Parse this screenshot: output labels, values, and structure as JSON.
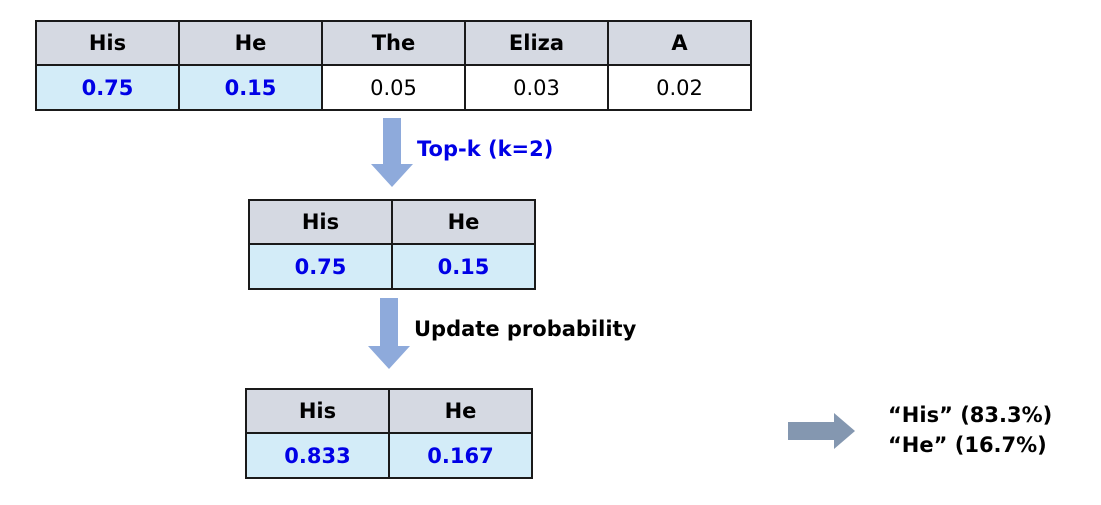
{
  "colors": {
    "header_fill": "#d5d9e2",
    "highlight_fill": "#d3ecf8",
    "highlight_text": "#0000e6",
    "down_arrow": "#8eaadb",
    "right_arrow": "#8497b0",
    "topk_label": "#0000e6"
  },
  "table_all": {
    "headers": [
      "His",
      "He",
      "The",
      "Eliza",
      "A"
    ],
    "values": [
      "0.75",
      "0.15",
      "0.05",
      "0.03",
      "0.02"
    ]
  },
  "step1": {
    "label": "Top-k (k=2)"
  },
  "table_topk": {
    "headers": [
      "His",
      "He"
    ],
    "values": [
      "0.75",
      "0.15"
    ]
  },
  "step2": {
    "label": "Update probability"
  },
  "table_updated": {
    "headers": [
      "His",
      "He"
    ],
    "values": [
      "0.833",
      "0.167"
    ]
  },
  "result": {
    "lines": [
      "“His”  (83.3%)",
      "“He”  (16.7%)"
    ]
  }
}
